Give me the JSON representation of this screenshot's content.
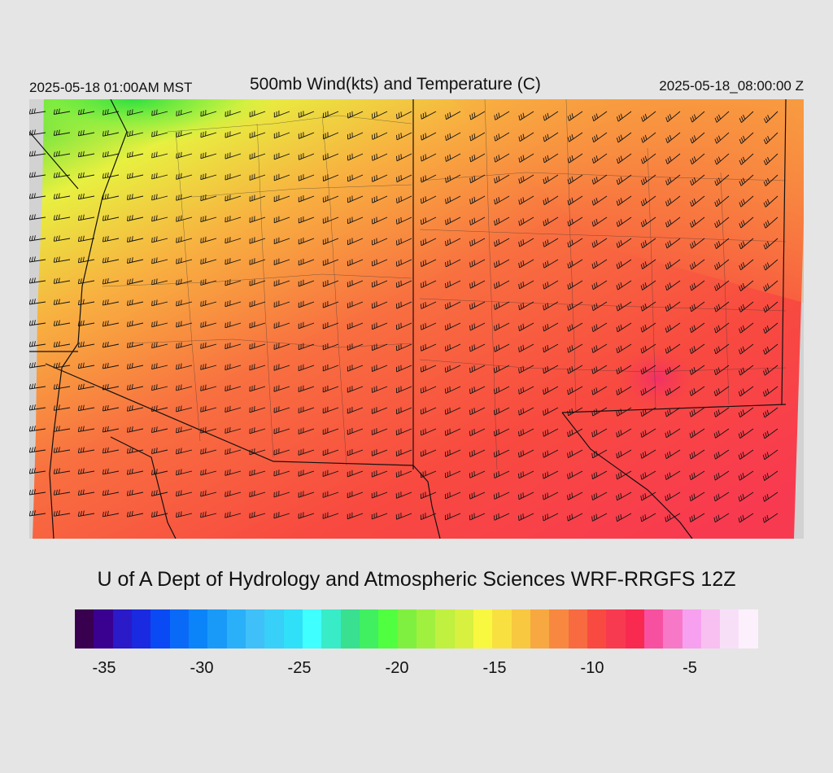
{
  "header": {
    "local_time": "2025-05-18 01:00AM MST",
    "title": "500mb Wind(kts) and Temperature (C)",
    "valid_time": "2025-05-18_08:00:00 Z"
  },
  "credit": "U of A Dept of Hydrology and Atmospheric Sciences WRF-RRGFS 12Z",
  "colorbar": {
    "colors": [
      "#3a0050",
      "#3a0090",
      "#2a1ac8",
      "#1a2ae0",
      "#0a4af5",
      "#0a6af8",
      "#0a84f8",
      "#1a9af8",
      "#2ab0f8",
      "#40c0f8",
      "#38d0f8",
      "#30e0f8",
      "#40ffff",
      "#38ecc8",
      "#38e090",
      "#40f060",
      "#50ff40",
      "#80f040",
      "#a0f040",
      "#c0f040",
      "#d8f040",
      "#f8f840",
      "#f8e040",
      "#f8c840",
      "#f8a840",
      "#f88840",
      "#f86a40",
      "#f84a40",
      "#f83a50",
      "#f82a50",
      "#f850a0",
      "#f878c8",
      "#f8a0f0",
      "#f8c0f0",
      "#f8dff8",
      "#fdf0fd"
    ],
    "tick_labels": [
      "-35",
      "-30",
      "-25",
      "-20",
      "-15",
      "-10",
      "-5"
    ],
    "tick_values": [
      -35,
      -30,
      -25,
      -20,
      -15,
      -10,
      -5
    ],
    "min": -36.5,
    "max": -1.5
  },
  "field": {
    "variable": "temperature_500mb",
    "units": "C",
    "wind_units": "kts",
    "general_flow": "west-southwesterly",
    "coldest_region": "north-west",
    "warmest_region": "south-east"
  }
}
